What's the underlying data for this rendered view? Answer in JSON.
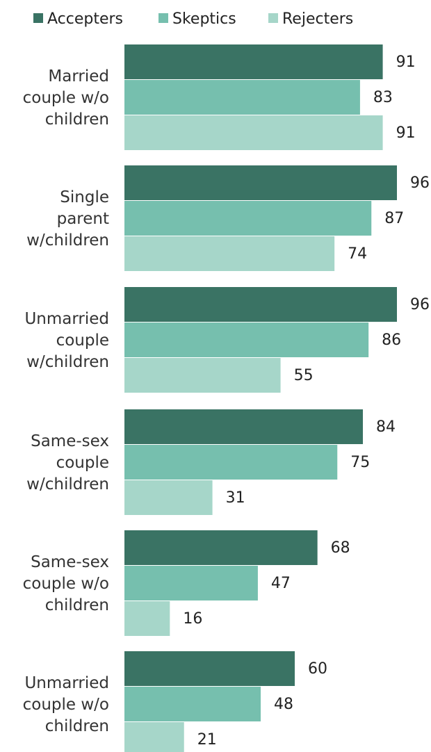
{
  "chart_data": {
    "type": "bar",
    "orientation": "horizontal",
    "title": "",
    "xlabel": "",
    "ylabel": "",
    "xlim": [
      0,
      100
    ],
    "grid": false,
    "legend_position": "top-left",
    "categories": [
      [
        "Married",
        "couple w/o",
        "children"
      ],
      [
        "Single",
        "parent",
        "w/children"
      ],
      [
        "Unmarried",
        "couple",
        "w/children"
      ],
      [
        "Same-sex",
        "couple",
        "w/children"
      ],
      [
        "Same-sex",
        "couple w/o",
        "children"
      ],
      [
        "Unmarried",
        "couple w/o",
        "children"
      ]
    ],
    "series": [
      {
        "name": "Accepters",
        "color": "#3a7364",
        "values": [
          91,
          96,
          96,
          84,
          68,
          60
        ]
      },
      {
        "name": "Skeptics",
        "color": "#76bfae",
        "values": [
          83,
          87,
          86,
          75,
          47,
          48
        ]
      },
      {
        "name": "Rejecters",
        "color": "#a6d6c9",
        "values": [
          91,
          74,
          55,
          31,
          16,
          21
        ]
      }
    ]
  }
}
